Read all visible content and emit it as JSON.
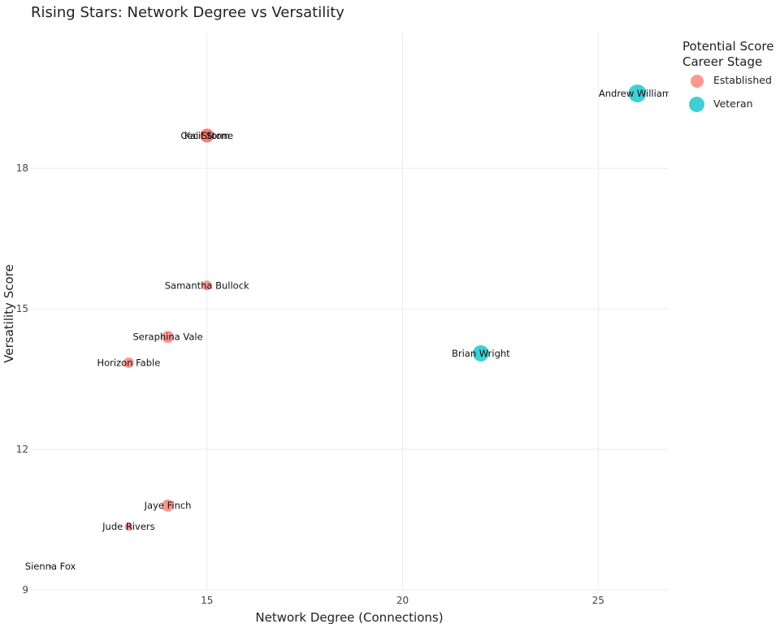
{
  "chart_data": {
    "type": "scatter",
    "title": "Rising Stars: Network Degree vs Versatility",
    "xlabel": "Network Degree (Connections)",
    "ylabel": "Versatility Score",
    "xlim": [
      10.5,
      26.8
    ],
    "ylim": [
      9,
      20.9
    ],
    "xticks": [
      15,
      20,
      25
    ],
    "yticks": [
      9,
      12,
      15,
      18
    ],
    "grid": true,
    "legend": {
      "position": "right",
      "title_lines": [
        "Potential Score",
        "Career Stage"
      ],
      "entries": [
        {
          "label": "Established",
          "color": "#f8766d"
        },
        {
          "label": "Veteran",
          "color": "#00bfc4"
        }
      ]
    },
    "points": [
      {
        "label": "Andrew Williams",
        "x": 26,
        "y": 19.6,
        "stage": "Veteran",
        "size": 22
      },
      {
        "label": "Kai Storm",
        "x": 15,
        "y": 18.7,
        "stage": "Established",
        "size": 17
      },
      {
        "label": "Cecil Stone",
        "x": 15,
        "y": 18.7,
        "stage": "Established",
        "size": 17
      },
      {
        "label": "Samantha Bullock",
        "x": 15,
        "y": 15.5,
        "stage": "Established",
        "size": 12
      },
      {
        "label": "Seraphina Vale",
        "x": 14,
        "y": 14.4,
        "stage": "Established",
        "size": 15
      },
      {
        "label": "Horizon Fable",
        "x": 13,
        "y": 13.85,
        "stage": "Established",
        "size": 13
      },
      {
        "label": "Brian Wright",
        "x": 22,
        "y": 14.05,
        "stage": "Veteran",
        "size": 20
      },
      {
        "label": "Jaye Finch",
        "x": 14,
        "y": 10.8,
        "stage": "Established",
        "size": 15
      },
      {
        "label": "Jude Rivers",
        "x": 13,
        "y": 10.35,
        "stage": "Established",
        "size": 10
      },
      {
        "label": "Sienna Fox",
        "x": 11,
        "y": 9.5,
        "stage": "Established",
        "size": 4
      }
    ]
  }
}
